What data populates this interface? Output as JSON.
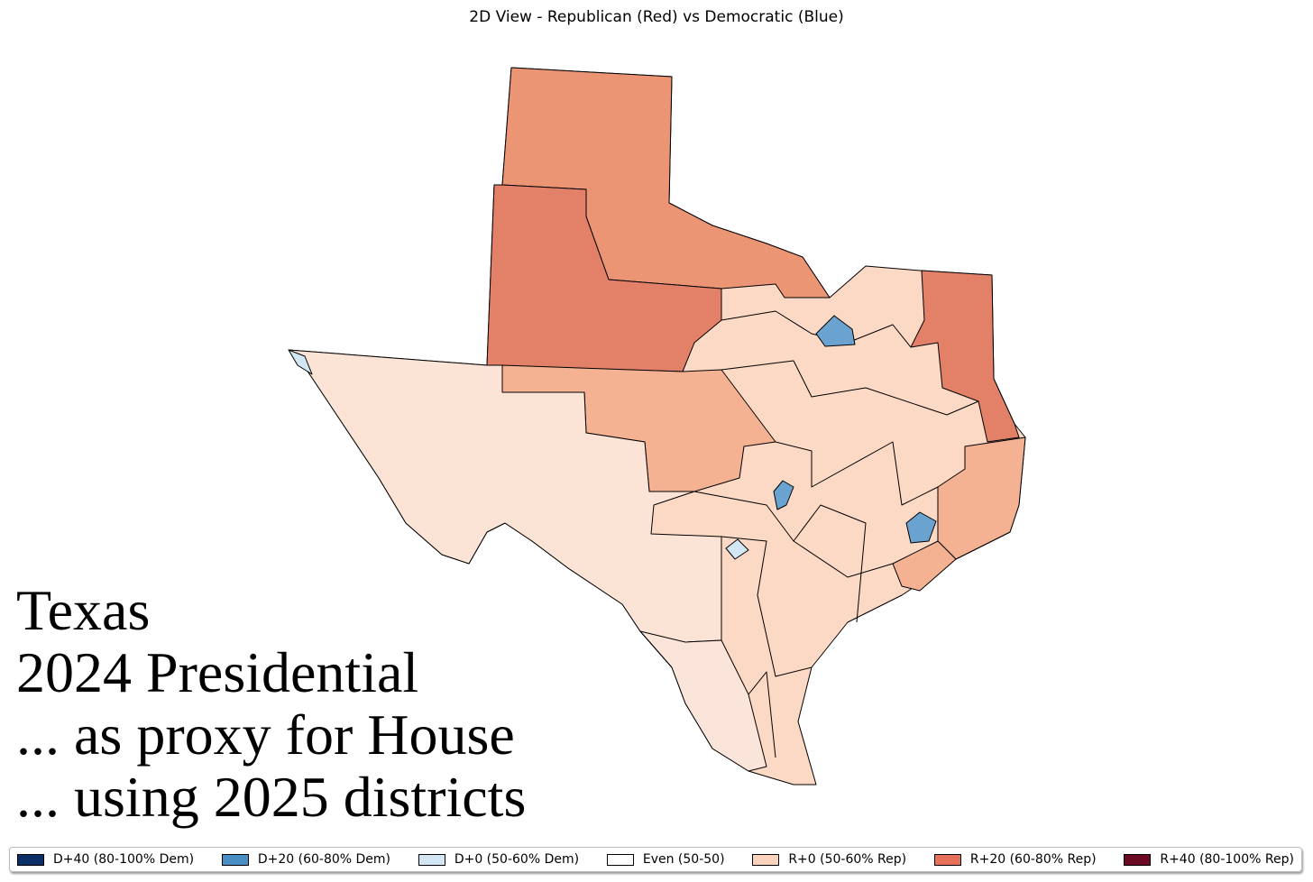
{
  "title": "2D View - Republican (Red) vs Democratic (Blue)",
  "overlay": [
    "Texas",
    "2024 Presidential",
    "... as proxy for House",
    "... using 2025 districts"
  ],
  "legend": [
    {
      "label": "D+40 (80-100% Dem)",
      "color": "#0b2f66"
    },
    {
      "label": "D+20 (60-80% Dem)",
      "color": "#4a8fc4"
    },
    {
      "label": "D+0 (50-60% Dem)",
      "color": "#d3e6f3"
    },
    {
      "label": "Even (50-50)",
      "color": "#ffffff"
    },
    {
      "label": "R+0 (50-60% Rep)",
      "color": "#fcd3bc"
    },
    {
      "label": "R+20 (60-80% Rep)",
      "color": "#e6705a"
    },
    {
      "label": "R+40 (80-100% Rep)",
      "color": "#6b0a22"
    }
  ]
}
